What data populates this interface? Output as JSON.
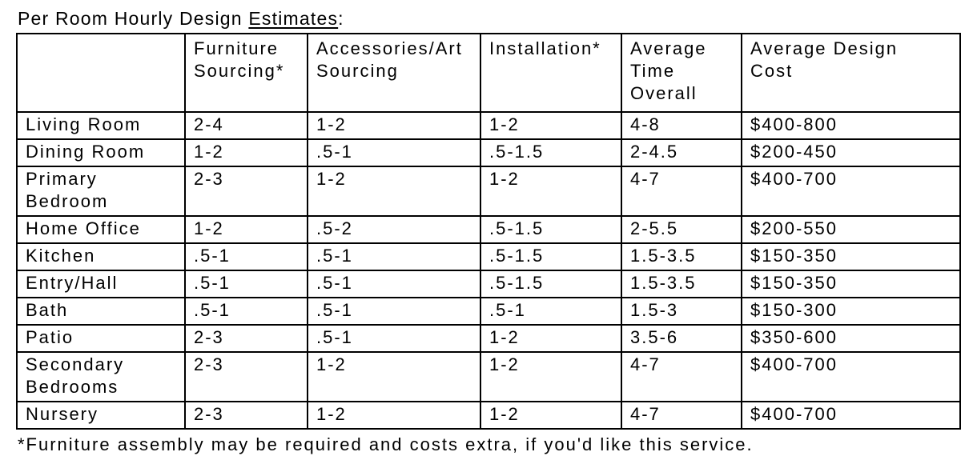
{
  "title": {
    "prefix": "Per Room Hourly Design ",
    "underlined": "Estimates",
    "suffix": ":"
  },
  "table": {
    "columns": [
      "",
      "Furniture Sourcing*",
      "Accessories/Art Sourcing",
      "Installation*",
      "Average Time Overall",
      "Average Design Cost"
    ],
    "rows": [
      {
        "room": "Living Room",
        "values": [
          "2-4",
          "1-2",
          "1-2",
          "4-8",
          "$400-800"
        ]
      },
      {
        "room": "Dining Room",
        "values": [
          "1-2",
          ".5-1",
          ".5-1.5",
          "2-4.5",
          "$200-450"
        ]
      },
      {
        "room": "Primary Bedroom",
        "values": [
          "2-3",
          "1-2",
          "1-2",
          "4-7",
          "$400-700"
        ]
      },
      {
        "room": "Home Office",
        "values": [
          "1-2",
          ".5-2",
          ".5-1.5",
          "2-5.5",
          "$200-550"
        ]
      },
      {
        "room": "Kitchen",
        "values": [
          ".5-1",
          ".5-1",
          ".5-1.5",
          "1.5-3.5",
          "$150-350"
        ]
      },
      {
        "room": "Entry/Hall",
        "values": [
          ".5-1",
          ".5-1",
          ".5-1.5",
          "1.5-3.5",
          "$150-350"
        ]
      },
      {
        "room": "Bath",
        "values": [
          ".5-1",
          ".5-1",
          ".5-1",
          "1.5-3",
          "$150-300"
        ]
      },
      {
        "room": "Patio",
        "values": [
          "2-3",
          ".5-1",
          "1-2",
          "3.5-6",
          "$350-600"
        ]
      },
      {
        "room": "Secondary Bedrooms",
        "values": [
          "2-3",
          "1-2",
          "1-2",
          "4-7",
          "$400-700"
        ]
      },
      {
        "room": "Nursery",
        "values": [
          "2-3",
          "1-2",
          "1-2",
          "4-7",
          "$400-700"
        ]
      }
    ]
  },
  "footnote": "*Furniture assembly may be required and costs extra, if you'd like this service."
}
